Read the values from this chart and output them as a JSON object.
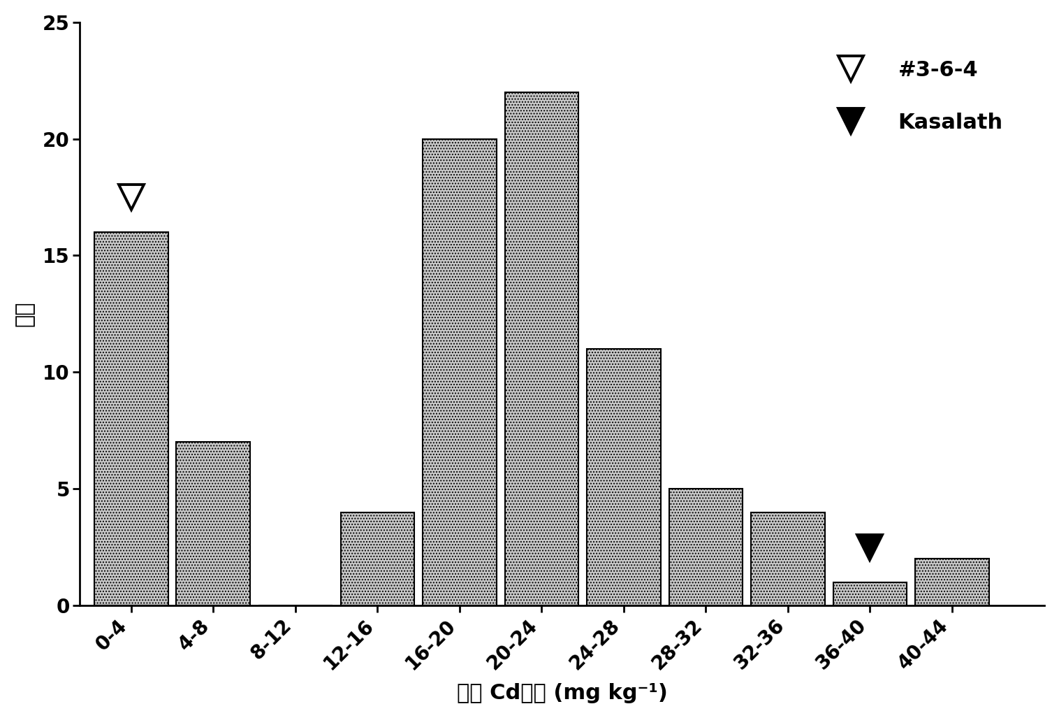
{
  "categories": [
    "0-4",
    "4-8",
    "8-12",
    "12-16",
    "16-20",
    "20-24",
    "24-28",
    "28-32",
    "32-36",
    "36-40",
    "40-44"
  ],
  "values": [
    16,
    7,
    0,
    4,
    20,
    22,
    11,
    5,
    4,
    1,
    2
  ],
  "bar_color": "#c8c8c8",
  "bar_hatch": "....",
  "bar_edgecolor": "#000000",
  "ylabel": "頻度",
  "xlabel": "茎叶 Cd浓度 (mg kg⁻¹)",
  "ylim": [
    0,
    25
  ],
  "yticks": [
    0,
    5,
    10,
    15,
    20,
    25
  ],
  "legend_open_label": "#3-6-4",
  "legend_filled_label": "Kasalath",
  "background_color": "#ffffff",
  "bar_width": 3.6,
  "xlabel_fontsize": 22,
  "ylabel_fontsize": 22,
  "tick_fontsize": 20,
  "legend_fontsize": 22,
  "marker1_bar_index": 0,
  "marker2_bar_index": 9
}
